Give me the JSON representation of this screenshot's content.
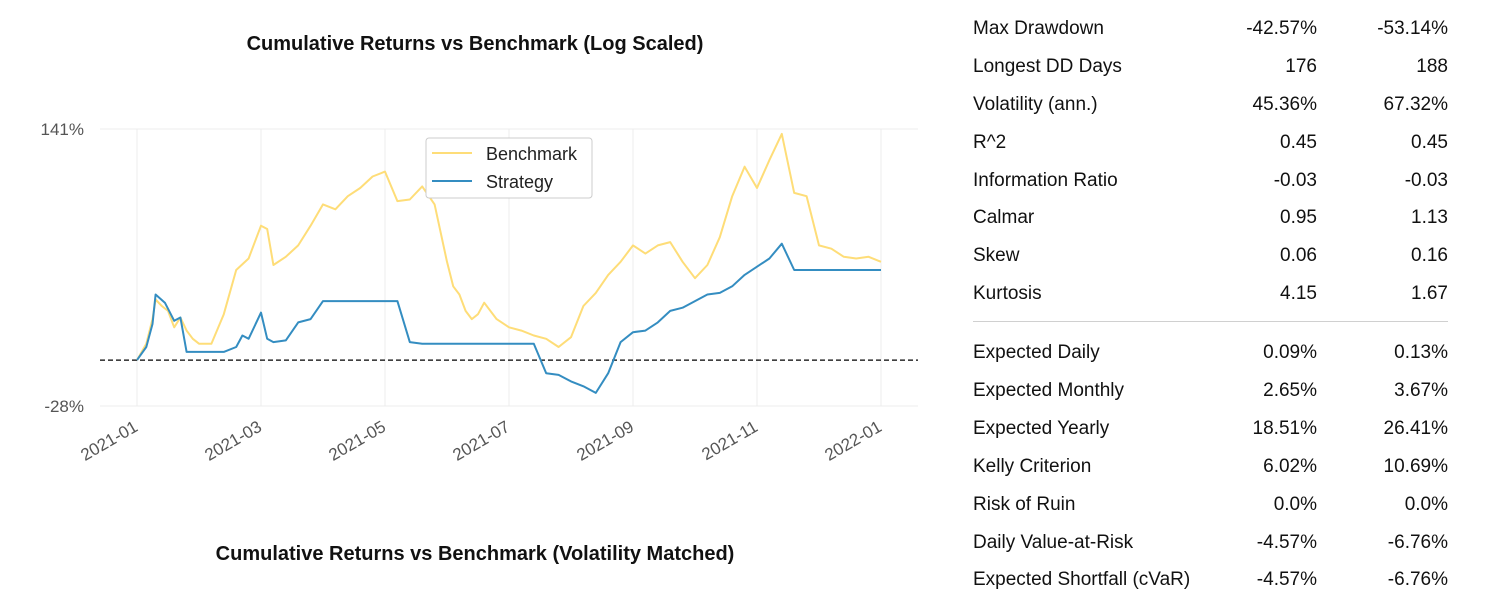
{
  "chart_data": {
    "type": "line",
    "title": "Cumulative Returns vs Benchmark (Log Scaled)",
    "xlabel": "",
    "ylabel": "",
    "y_ticks": [
      "141%",
      "-28%"
    ],
    "y_tick_values": [
      1.41,
      -0.28
    ],
    "ylim": [
      -0.28,
      1.41
    ],
    "x_ticks": [
      "2021-01",
      "2021-03",
      "2021-05",
      "2021-07",
      "2021-09",
      "2021-11",
      "2022-01"
    ],
    "x_range": [
      0,
      12
    ],
    "reference_line": {
      "value": 0,
      "style": "dashed"
    },
    "legend": {
      "position": "top-center",
      "entries": [
        "Benchmark",
        "Strategy"
      ]
    },
    "series": [
      {
        "name": "Benchmark",
        "color": "#fedd78",
        "x": [
          0.0,
          0.15,
          0.25,
          0.3,
          0.4,
          0.5,
          0.6,
          0.7,
          0.8,
          0.9,
          1.0,
          1.2,
          1.4,
          1.6,
          1.8,
          2.0,
          2.1,
          2.2,
          2.4,
          2.6,
          2.8,
          3.0,
          3.2,
          3.4,
          3.6,
          3.8,
          4.0,
          4.2,
          4.4,
          4.6,
          4.8,
          5.0,
          5.1,
          5.2,
          5.3,
          5.4,
          5.5,
          5.6,
          5.8,
          6.0,
          6.2,
          6.4,
          6.6,
          6.8,
          7.0,
          7.2,
          7.4,
          7.6,
          7.8,
          8.0,
          8.2,
          8.4,
          8.6,
          8.8,
          9.0,
          9.2,
          9.4,
          9.6,
          9.8,
          10.0,
          10.2,
          10.4,
          10.6,
          10.8,
          11.0,
          11.2,
          11.4,
          11.6,
          11.8,
          12.0
        ],
        "y": [
          0.0,
          0.1,
          0.25,
          0.37,
          0.33,
          0.3,
          0.2,
          0.26,
          0.18,
          0.13,
          0.1,
          0.1,
          0.28,
          0.55,
          0.62,
          0.82,
          0.8,
          0.58,
          0.63,
          0.7,
          0.82,
          0.95,
          0.92,
          1.0,
          1.05,
          1.12,
          1.15,
          0.97,
          0.98,
          1.06,
          0.95,
          0.6,
          0.45,
          0.4,
          0.3,
          0.25,
          0.28,
          0.35,
          0.25,
          0.2,
          0.18,
          0.15,
          0.13,
          0.08,
          0.14,
          0.33,
          0.41,
          0.52,
          0.6,
          0.7,
          0.65,
          0.7,
          0.72,
          0.6,
          0.5,
          0.58,
          0.75,
          1.0,
          1.18,
          1.05,
          1.22,
          1.38,
          1.02,
          1.0,
          0.7,
          0.68,
          0.63,
          0.62,
          0.63,
          0.6
        ]
      },
      {
        "name": "Strategy",
        "color": "#348dc1",
        "x": [
          0.0,
          0.15,
          0.25,
          0.3,
          0.45,
          0.6,
          0.7,
          0.8,
          1.0,
          1.2,
          1.4,
          1.6,
          1.7,
          1.8,
          2.0,
          2.1,
          2.2,
          2.4,
          2.6,
          2.8,
          3.0,
          3.2,
          3.4,
          3.6,
          3.8,
          4.0,
          4.2,
          4.4,
          4.6,
          4.8,
          5.0,
          5.2,
          5.4,
          5.6,
          5.8,
          6.0,
          6.2,
          6.4,
          6.6,
          6.8,
          7.0,
          7.2,
          7.4,
          7.6,
          7.8,
          8.0,
          8.2,
          8.4,
          8.6,
          8.8,
          9.0,
          9.2,
          9.4,
          9.6,
          9.8,
          10.0,
          10.2,
          10.4,
          10.6,
          10.8,
          11.0,
          11.2,
          11.4,
          11.6,
          11.8,
          12.0
        ],
        "y": [
          0.0,
          0.08,
          0.22,
          0.4,
          0.35,
          0.24,
          0.26,
          0.05,
          0.05,
          0.05,
          0.05,
          0.08,
          0.15,
          0.13,
          0.29,
          0.13,
          0.11,
          0.12,
          0.23,
          0.25,
          0.36,
          0.36,
          0.36,
          0.36,
          0.36,
          0.36,
          0.36,
          0.11,
          0.1,
          0.1,
          0.1,
          0.1,
          0.1,
          0.1,
          0.1,
          0.1,
          0.1,
          0.1,
          -0.08,
          -0.09,
          -0.13,
          -0.16,
          -0.2,
          -0.08,
          0.11,
          0.17,
          0.18,
          0.23,
          0.3,
          0.32,
          0.36,
          0.4,
          0.41,
          0.45,
          0.52,
          0.57,
          0.62,
          0.71,
          0.55,
          0.55,
          0.55,
          0.55,
          0.55,
          0.55,
          0.55,
          0.55
        ]
      }
    ]
  },
  "chart2": {
    "title": "Cumulative Returns vs Benchmark (Volatility Matched)"
  },
  "metrics": {
    "group1": [
      {
        "label": "Max Drawdown",
        "strategy": "-42.57%",
        "benchmark": "-53.14%"
      },
      {
        "label": "Longest DD Days",
        "strategy": "176",
        "benchmark": "188"
      },
      {
        "label": "Volatility (ann.)",
        "strategy": "45.36%",
        "benchmark": "67.32%"
      },
      {
        "label": "R^2",
        "strategy": "0.45",
        "benchmark": "0.45"
      },
      {
        "label": "Information Ratio",
        "strategy": "-0.03",
        "benchmark": "-0.03"
      },
      {
        "label": "Calmar",
        "strategy": "0.95",
        "benchmark": "1.13"
      },
      {
        "label": "Skew",
        "strategy": "0.06",
        "benchmark": "0.16"
      },
      {
        "label": "Kurtosis",
        "strategy": "4.15",
        "benchmark": "1.67"
      }
    ],
    "group2": [
      {
        "label": "Expected Daily",
        "strategy": "0.09%",
        "benchmark": "0.13%"
      },
      {
        "label": "Expected Monthly",
        "strategy": "2.65%",
        "benchmark": "3.67%"
      },
      {
        "label": "Expected Yearly",
        "strategy": "18.51%",
        "benchmark": "26.41%"
      },
      {
        "label": "Kelly Criterion",
        "strategy": "6.02%",
        "benchmark": "10.69%"
      },
      {
        "label": "Risk of Ruin",
        "strategy": "0.0%",
        "benchmark": "0.0%"
      },
      {
        "label": "Daily Value-at-Risk",
        "strategy": "-4.57%",
        "benchmark": "-6.76%"
      },
      {
        "label": "Expected Shortfall (cVaR)",
        "strategy": "-4.57%",
        "benchmark": "-6.76%"
      }
    ]
  }
}
